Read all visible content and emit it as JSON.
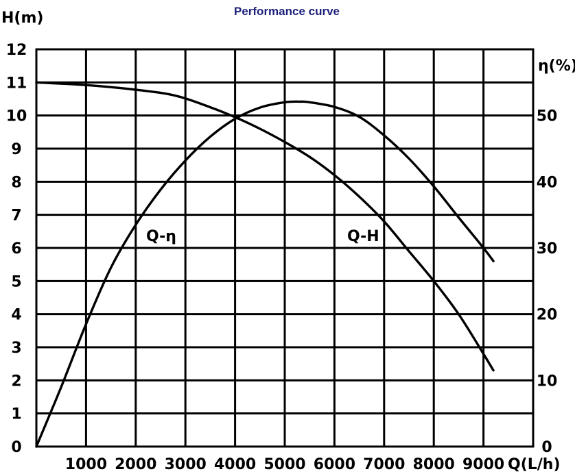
{
  "chart_data": {
    "type": "line",
    "title": "Performance curve",
    "xlabel": "Q(L/h)",
    "ylabel_left": "H(m)",
    "ylabel_right": "η(%)",
    "xlim": [
      0,
      10000
    ],
    "ylim_left": [
      0,
      12
    ],
    "ylim_right": [
      0,
      60
    ],
    "grid": true,
    "x_ticks": [
      "1000",
      "2000",
      "3000",
      "4000",
      "5000",
      "6000",
      "7000",
      "8000",
      "9000"
    ],
    "y_ticks_left": [
      "0",
      "1",
      "2",
      "3",
      "4",
      "5",
      "6",
      "7",
      "8",
      "9",
      "10",
      "11",
      "12"
    ],
    "y_ticks_right": [
      "0",
      "10",
      "20",
      "30",
      "40",
      "50"
    ],
    "series": [
      {
        "name": "Q-H",
        "axis": "left",
        "label": "Q-H",
        "x": [
          0,
          1000,
          2000,
          2800,
          3500,
          4000,
          4500,
          5000,
          5500,
          6000,
          6500,
          7000,
          7500,
          8000,
          8500,
          9000,
          9200
        ],
        "y": [
          11.0,
          10.92,
          10.78,
          10.6,
          10.25,
          9.95,
          9.6,
          9.2,
          8.75,
          8.2,
          7.55,
          6.8,
          5.9,
          5.0,
          4.0,
          2.8,
          2.3
        ]
      },
      {
        "name": "Q-η",
        "axis": "right",
        "label": "Q-η",
        "x": [
          0,
          500,
          1000,
          1500,
          2000,
          2500,
          3000,
          3500,
          4000,
          4500,
          5000,
          5300,
          5500,
          6000,
          6500,
          7000,
          7500,
          8000,
          8500,
          9000,
          9200
        ],
        "y": [
          0,
          9,
          18.5,
          27,
          33.5,
          38.8,
          43.2,
          46.8,
          49.5,
          51.2,
          52.0,
          52.1,
          52.0,
          51.3,
          49.8,
          47.0,
          43.5,
          39.3,
          34.6,
          30.0,
          28.0
        ]
      }
    ]
  }
}
